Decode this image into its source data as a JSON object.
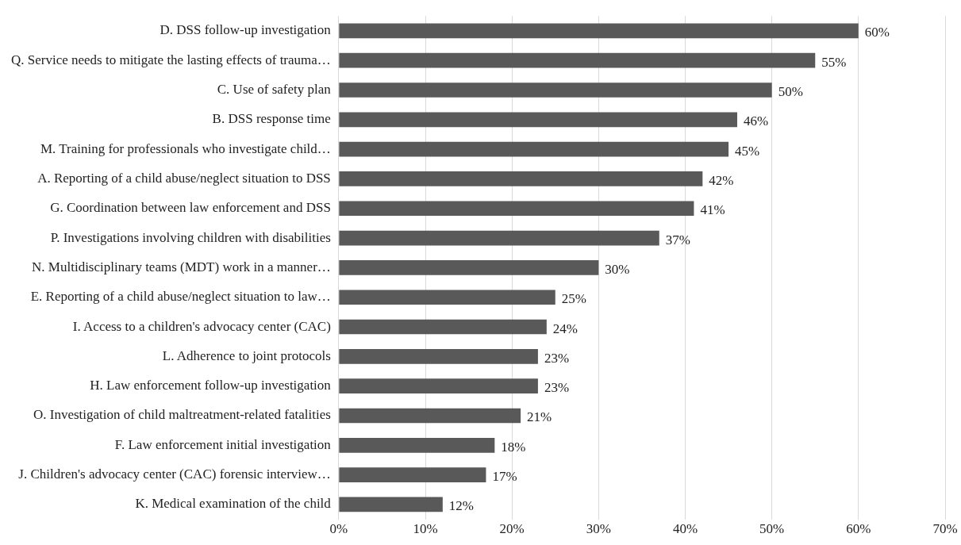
{
  "chart_data": {
    "type": "bar",
    "orientation": "horizontal",
    "categories": [
      "D. DSS follow-up investigation",
      "Q. Service needs to mitigate the lasting effects of trauma…",
      "C. Use of safety plan",
      "B. DSS response time",
      "M. Training for professionals who investigate child…",
      "A. Reporting of a child abuse/neglect situation to DSS",
      "G. Coordination between law enforcement and DSS",
      "P. Investigations involving children with disabilities",
      "N. Multidisciplinary teams (MDT) work in a manner…",
      "E. Reporting of a child abuse/neglect situation to law…",
      "I. Access to a children's advocacy center (CAC)",
      "L. Adherence to joint protocols",
      "H. Law enforcement follow-up investigation",
      "O. Investigation of child maltreatment-related fatalities",
      "F. Law enforcement initial investigation",
      "J. Children's advocacy center (CAC) forensic interview…",
      "K. Medical examination of the child"
    ],
    "values": [
      60,
      55,
      50,
      46,
      45,
      42,
      41,
      37,
      30,
      25,
      24,
      23,
      23,
      21,
      18,
      17,
      12
    ],
    "value_labels": [
      "60%",
      "55%",
      "50%",
      "46%",
      "45%",
      "42%",
      "41%",
      "37%",
      "30%",
      "25%",
      "24%",
      "23%",
      "23%",
      "21%",
      "18%",
      "17%",
      "12%"
    ],
    "color": "#595959",
    "xlim": [
      0,
      70
    ],
    "xticks": [
      {
        "value": 0,
        "label": "0%"
      },
      {
        "value": 10,
        "label": "10%"
      },
      {
        "value": 20,
        "label": "20%"
      },
      {
        "value": 30,
        "label": "30%"
      },
      {
        "value": 40,
        "label": "40%"
      },
      {
        "value": 50,
        "label": "50%"
      },
      {
        "value": 60,
        "label": "60%"
      },
      {
        "value": 70,
        "label": "70%"
      }
    ],
    "grid": "x"
  }
}
